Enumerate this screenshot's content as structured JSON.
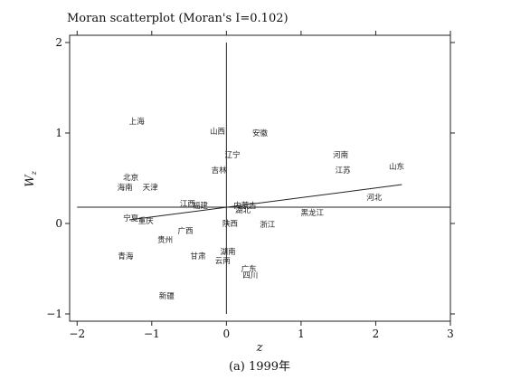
{
  "chart_data": {
    "type": "scatter",
    "title": "Moran scatterplot (Moran's I=0.102)",
    "xlabel": "z",
    "ylabel": "W",
    "ylabel_sub": "z",
    "caption": "(a) 1999年",
    "xlim": [
      -2.1,
      3.0
    ],
    "ylim": [
      -1.08,
      2.08
    ],
    "xticks": [
      -2,
      -1,
      0,
      1,
      2,
      3
    ],
    "yticks": [
      -1,
      0,
      1,
      2
    ],
    "grid": false,
    "reference_lines": {
      "x": 0,
      "y": 0.18
    },
    "regression_line": {
      "x": [
        -1.3,
        2.35
      ],
      "y": [
        0.04,
        0.43
      ]
    },
    "points": [
      {
        "label": "上海",
        "x": -1.2,
        "y": 1.13
      },
      {
        "label": "山西",
        "x": -0.12,
        "y": 1.02
      },
      {
        "label": "安徽",
        "x": 0.45,
        "y": 1.0
      },
      {
        "label": "辽宁",
        "x": 0.08,
        "y": 0.76
      },
      {
        "label": "河南",
        "x": 1.53,
        "y": 0.76
      },
      {
        "label": "吉林",
        "x": -0.1,
        "y": 0.59
      },
      {
        "label": "江苏",
        "x": 1.56,
        "y": 0.59
      },
      {
        "label": "山东",
        "x": 2.28,
        "y": 0.63
      },
      {
        "label": "北京",
        "x": -1.28,
        "y": 0.51
      },
      {
        "label": "海南",
        "x": -1.36,
        "y": 0.4
      },
      {
        "label": "天津",
        "x": -1.02,
        "y": 0.4
      },
      {
        "label": "河北",
        "x": 1.98,
        "y": 0.29
      },
      {
        "label": "福建",
        "x": -0.35,
        "y": 0.2
      },
      {
        "label": "江西",
        "x": -0.52,
        "y": 0.22
      },
      {
        "label": "内蒙古",
        "x": 0.25,
        "y": 0.2
      },
      {
        "label": "湖北",
        "x": 0.22,
        "y": 0.15
      },
      {
        "label": "黑龙江",
        "x": 1.15,
        "y": 0.12
      },
      {
        "label": "宁夏",
        "x": -1.28,
        "y": 0.06
      },
      {
        "label": "重庆",
        "x": -1.08,
        "y": 0.03
      },
      {
        "label": "陕西",
        "x": 0.05,
        "y": 0.0
      },
      {
        "label": "浙江",
        "x": 0.55,
        "y": -0.01
      },
      {
        "label": "广西",
        "x": -0.55,
        "y": -0.08
      },
      {
        "label": "贵州",
        "x": -0.82,
        "y": -0.18
      },
      {
        "label": "青海",
        "x": -1.35,
        "y": -0.36
      },
      {
        "label": "甘肃",
        "x": -0.38,
        "y": -0.36
      },
      {
        "label": "湖南",
        "x": 0.02,
        "y": -0.31
      },
      {
        "label": "云南",
        "x": -0.05,
        "y": -0.41
      },
      {
        "label": "广东",
        "x": 0.3,
        "y": -0.5
      },
      {
        "label": "四川",
        "x": 0.32,
        "y": -0.57
      },
      {
        "label": "新疆",
        "x": -0.8,
        "y": -0.8
      }
    ]
  }
}
